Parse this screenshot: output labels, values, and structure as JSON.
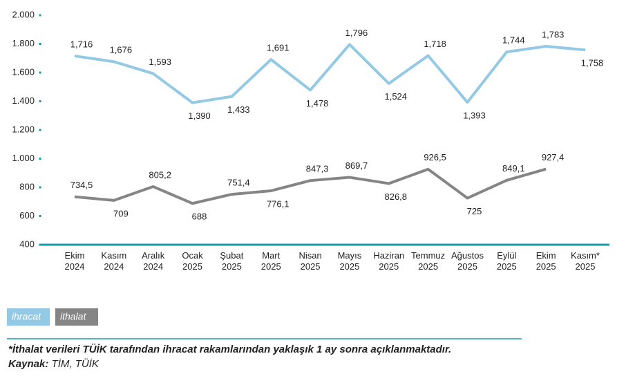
{
  "chart_data": {
    "type": "line",
    "categories": [
      "Ekim 2024",
      "Kasım 2024",
      "Aralık 2024",
      "Ocak 2025",
      "Şubat 2025",
      "Mart 2025",
      "Nisan 2025",
      "Mayıs 2025",
      "Haziran 2025",
      "Temmuz 2025",
      "Ağustos 2025",
      "Eylül 2025",
      "Ekim 2025",
      "Kasım* 2025"
    ],
    "series": [
      {
        "name": "ihracat",
        "color": "#93c9e4",
        "values": [
          1716,
          1676,
          1593,
          1390,
          1433,
          1691,
          1478,
          1796,
          1524,
          1718,
          1393,
          1744,
          1783,
          1758
        ],
        "value_labels": [
          "1,716",
          "1,676",
          "1,593",
          "1,390",
          "1,433",
          "1,691",
          "1,478",
          "1,796",
          "1,524",
          "1,718",
          "1,393",
          "1,744",
          "1,783",
          "1,758"
        ]
      },
      {
        "name": "ithalat",
        "color": "#858585",
        "values": [
          734.5,
          709,
          805.2,
          688,
          751.4,
          776.1,
          847.3,
          869.7,
          826.8,
          926.5,
          725,
          849.1,
          927.4,
          null
        ],
        "value_labels": [
          "734,5",
          "709",
          "805,2",
          "688",
          "751,4",
          "776,1",
          "847,3",
          "869,7",
          "826,8",
          "926,5",
          "725",
          "849,1",
          "927,4",
          null
        ]
      }
    ],
    "ylim": [
      400,
      2000
    ],
    "yticks": [
      400,
      600,
      800,
      {
        "value": 1000,
        "label": "1.000"
      },
      {
        "value": 1200,
        "label": "1.200"
      },
      {
        "value": 1400,
        "label": "1.400"
      },
      {
        "value": 1600,
        "label": "1.600"
      },
      {
        "value": 1800,
        "label": "1.800"
      },
      {
        "value": 2000,
        "label": "2.000"
      }
    ],
    "legend": "bottom-left",
    "footnote": "*İthalat verileri TÜİK tarafından ihracat rakamlarından yaklaşık 1 ay sonra açıklanmaktadır.",
    "source_label": "Kaynak:",
    "source": "TİM, TÜİK"
  }
}
